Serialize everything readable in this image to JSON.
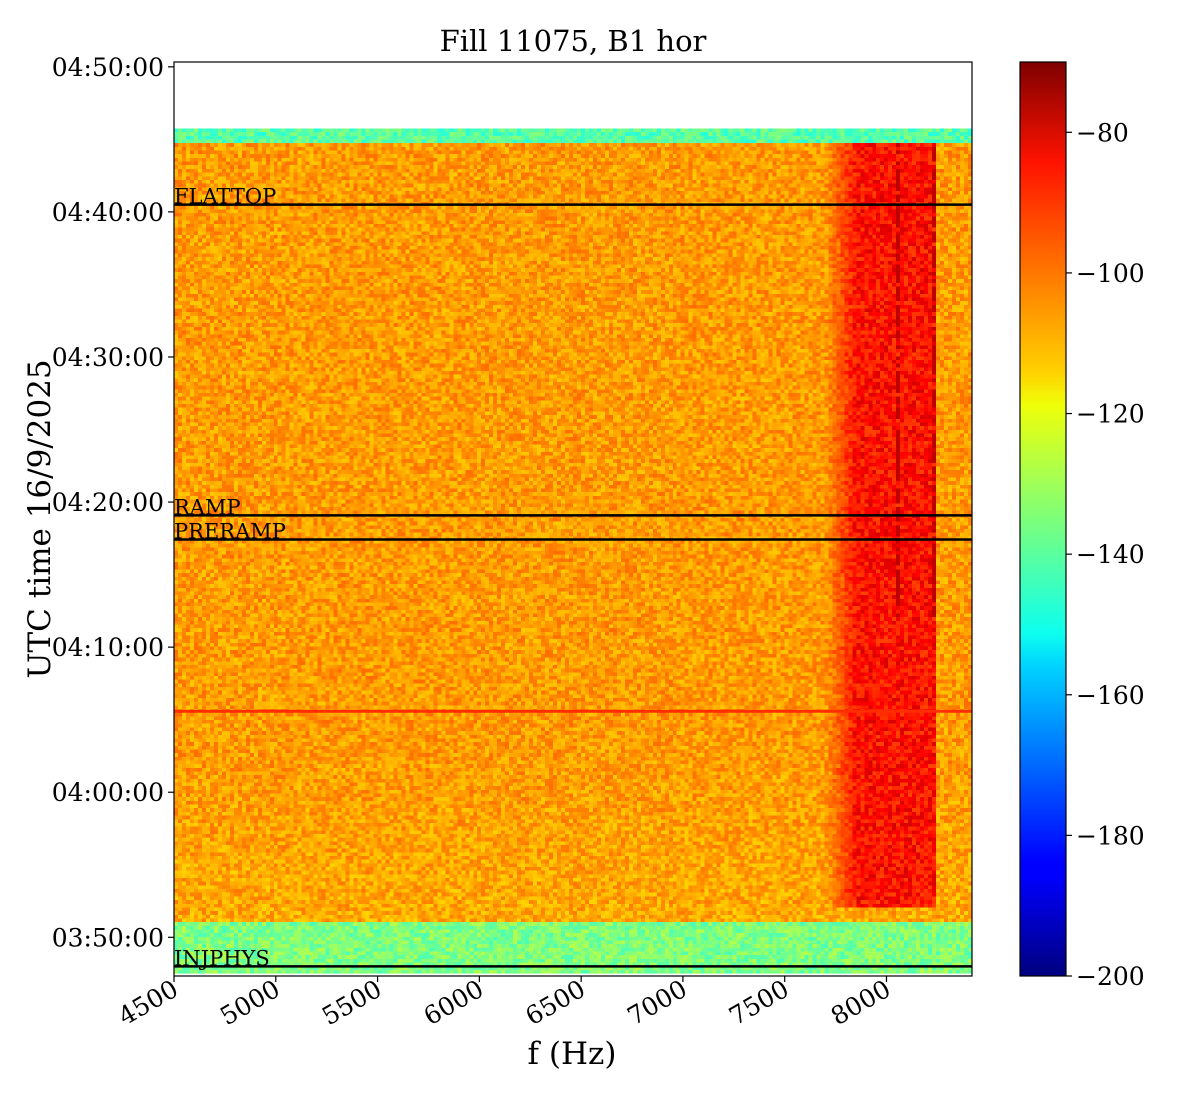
{
  "chart_data": {
    "type": "heatmap",
    "title": "Fill 11075, B1 hor",
    "xlabel": "f (Hz)",
    "ylabel": "UTC time 16/9/2025",
    "xlim": [
      4500,
      8420
    ],
    "x_ticks": [
      4500,
      5000,
      5500,
      6000,
      6500,
      7000,
      7500,
      8000
    ],
    "x_tick_labels": [
      "4500",
      "5000",
      "5500",
      "6000",
      "6500",
      "7000",
      "7500",
      "8000"
    ],
    "y_range": [
      "03:47:20",
      "04:50:20"
    ],
    "y_ticks": [
      "03:50:00",
      "04:00:00",
      "04:10:00",
      "04:20:00",
      "04:30:00",
      "04:40:00",
      "04:50:00"
    ],
    "data_time_range": [
      "03:47:30",
      "04:45:45"
    ],
    "colorbar": {
      "colormap": "jet",
      "range": [
        -200,
        -70
      ],
      "ticks": [
        -80,
        -100,
        -120,
        -140,
        -160,
        -180,
        -200
      ],
      "tick_labels": [
        "−80",
        "−100",
        "−120",
        "−140",
        "−160",
        "−180",
        "−200"
      ]
    },
    "markers": [
      {
        "label": "FLATTOP",
        "time": "04:40:30"
      },
      {
        "label": "RAMP",
        "time": "04:19:05"
      },
      {
        "label": "PRERAMP",
        "time": "04:17:25"
      },
      {
        "label": "INJPHYS",
        "time": "03:48:00"
      }
    ],
    "features": [
      {
        "kind": "horizontal_line",
        "time": "04:05:35",
        "value": -92
      },
      {
        "kind": "band",
        "frequency_range": [
          7850,
          8250
        ],
        "time_range": [
          "03:52:00",
          "04:45:00"
        ],
        "value": -88
      },
      {
        "kind": "background",
        "value": -106
      },
      {
        "kind": "low_band",
        "time_range": [
          "03:47:30",
          "03:51:00"
        ],
        "value": -135
      },
      {
        "kind": "low_band",
        "time_range": [
          "04:44:40",
          "04:45:45"
        ],
        "value": -140
      }
    ]
  }
}
